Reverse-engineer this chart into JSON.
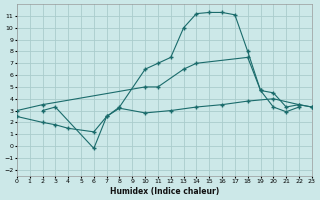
{
  "xlabel": "Humidex (Indice chaleur)",
  "bg_color": "#cce8e8",
  "grid_color": "#aacccc",
  "line_color": "#1a6b6b",
  "xlim": [
    0,
    23
  ],
  "ylim": [
    -2.5,
    12
  ],
  "xticks": [
    0,
    1,
    2,
    3,
    4,
    5,
    6,
    7,
    8,
    9,
    10,
    11,
    12,
    13,
    14,
    15,
    16,
    17,
    18,
    19,
    20,
    21,
    22,
    23
  ],
  "yticks": [
    -2,
    -1,
    0,
    1,
    2,
    3,
    4,
    5,
    6,
    7,
    8,
    9,
    10,
    11
  ],
  "curve1_x": [
    2,
    3,
    6,
    7,
    8,
    10,
    11,
    12,
    13,
    14,
    15,
    16,
    17,
    18,
    19,
    20,
    21,
    22
  ],
  "curve1_y": [
    3.0,
    3.3,
    -0.2,
    2.5,
    3.3,
    6.5,
    7.0,
    7.5,
    10.0,
    11.2,
    11.3,
    11.3,
    11.1,
    8.0,
    4.7,
    3.3,
    2.9,
    3.3
  ],
  "curve2_x": [
    0,
    2,
    10,
    11,
    13,
    14,
    18,
    19,
    20,
    21,
    22,
    23
  ],
  "curve2_y": [
    3.0,
    3.5,
    5.0,
    5.0,
    6.5,
    7.0,
    7.5,
    4.7,
    4.5,
    3.3,
    3.5,
    3.3
  ],
  "curve3_x": [
    0,
    2,
    3,
    4,
    6,
    7,
    8,
    10,
    12,
    14,
    16,
    18,
    20,
    22,
    23
  ],
  "curve3_y": [
    2.5,
    2.0,
    1.8,
    1.5,
    1.2,
    2.5,
    3.2,
    2.8,
    3.0,
    3.3,
    3.5,
    3.8,
    4.0,
    3.5,
    3.3
  ]
}
